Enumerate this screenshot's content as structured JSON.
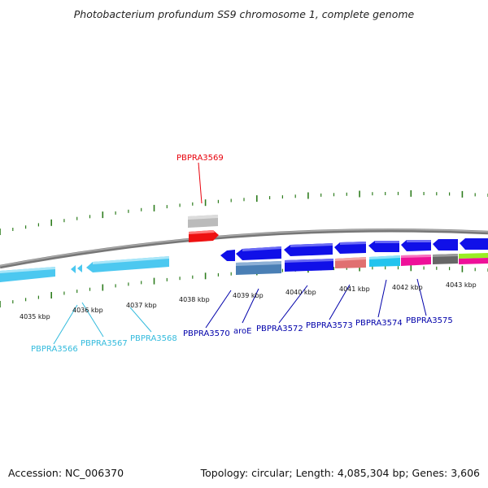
{
  "title": "Photobacterium profundum SS9 chromosome 1, complete genome",
  "footer": {
    "accession": "Accession: NC_006370",
    "summary": "Topology: circular; Length: 4,085,304 bp; Genes: 3,606"
  },
  "axis_labels": [
    "4035 kbp",
    "4036 kbp",
    "4037 kbp",
    "4038 kbp",
    "4039 kbp",
    "4040 kbp",
    "4041 kbp",
    "4042 kbp",
    "4043 kbp"
  ],
  "gene_labels": [
    {
      "id": "PBPRA3569",
      "color": "#e8000b"
    },
    {
      "id": "PBPRA3566",
      "color": "#33bbdd"
    },
    {
      "id": "PBPRA3567",
      "color": "#33bbdd"
    },
    {
      "id": "PBPRA3568",
      "color": "#33bbdd"
    },
    {
      "id": "PBPRA3570",
      "color": "#0000aa"
    },
    {
      "id": "aroE",
      "color": "#0000aa"
    },
    {
      "id": "PBPRA3572",
      "color": "#0000aa"
    },
    {
      "id": "PBPRA3573",
      "color": "#0000aa"
    },
    {
      "id": "PBPRA3574",
      "color": "#0000aa"
    },
    {
      "id": "PBPRA3575",
      "color": "#0000aa"
    }
  ],
  "colors": {
    "backbone": "#888888",
    "ticks": "#2e7d1e",
    "lightblue": "#4cc8f0",
    "blue": "#1010e8",
    "red": "#ee1111",
    "grey": "#bbbbbb",
    "steelblue": "#4a7fb5",
    "salmon": "#e07070",
    "cyan": "#22c4ee",
    "magenta": "#ee1199",
    "darkgrey": "#666666",
    "lime": "#99ee22"
  }
}
